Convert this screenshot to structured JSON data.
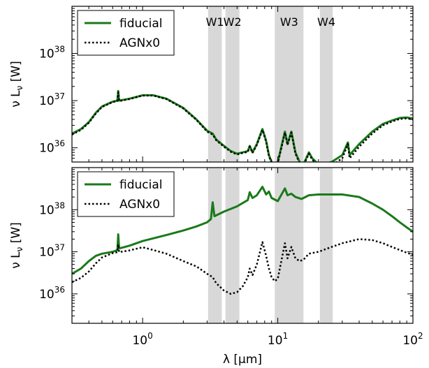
{
  "chart_data": [
    {
      "type": "line",
      "xscale": "log",
      "yscale": "log",
      "xlim": [
        0.3,
        100
      ],
      "ylim": [
        5e+35,
        1e+39
      ],
      "ylabel": "ν L_ν [W]",
      "yticks": [
        {
          "value": 1e+36,
          "mantissa": "10",
          "exp": "36"
        },
        {
          "value": 1e+37,
          "mantissa": "10",
          "exp": "37"
        },
        {
          "value": 1e+38,
          "mantissa": "10",
          "exp": "38"
        }
      ],
      "bands": [
        {
          "label": "W1",
          "range": [
            3.05,
            3.85
          ]
        },
        {
          "label": "W2",
          "range": [
            4.1,
            5.2
          ]
        },
        {
          "label": "W3",
          "range": [
            9.5,
            15.5
          ]
        },
        {
          "label": "W4",
          "range": [
            20.5,
            25.5
          ]
        }
      ],
      "legend_position": "top-left",
      "series": [
        {
          "name": "fiducial",
          "color": "#1a7a1a",
          "style": "solid",
          "points": [
            [
              0.3,
              2e+36
            ],
            [
              0.35,
              2.5e+36
            ],
            [
              0.4,
              3.5e+36
            ],
            [
              0.45,
              5.5e+36
            ],
            [
              0.5,
              7.5e+36
            ],
            [
              0.55,
              8.5e+36
            ],
            [
              0.6,
              9.5e+36
            ],
            [
              0.65,
              1e+37
            ],
            [
              0.66,
              1.6e+37
            ],
            [
              0.67,
              1e+37
            ],
            [
              0.8,
              1.1e+37
            ],
            [
              1.0,
              1.3e+37
            ],
            [
              1.2,
              1.3e+37
            ],
            [
              1.5,
              1.1e+37
            ],
            [
              2.0,
              7e+36
            ],
            [
              2.5,
              4e+36
            ],
            [
              3.0,
              2.3e+36
            ],
            [
              3.3,
              2e+36
            ],
            [
              3.5,
              1.5e+36
            ],
            [
              4.0,
              1.1e+36
            ],
            [
              4.5,
              8.5e+35
            ],
            [
              5.0,
              7.5e+35
            ],
            [
              5.5,
              8e+35
            ],
            [
              6.0,
              8.5e+35
            ],
            [
              6.2,
              1.1e+36
            ],
            [
              6.5,
              8e+35
            ],
            [
              7.0,
              1.2e+36
            ],
            [
              7.7,
              2.5e+36
            ],
            [
              8.2,
              1.4e+36
            ],
            [
              8.6,
              7e+35
            ],
            [
              9.0,
              5e+35
            ],
            [
              9.5,
              4e+35
            ],
            [
              10.0,
              5e+35
            ],
            [
              11.3,
              2.2e+36
            ],
            [
              11.8,
              1.2e+36
            ],
            [
              12.6,
              2.2e+36
            ],
            [
              13.5,
              8e+35
            ],
            [
              14.5,
              5e+35
            ],
            [
              15.5,
              4.5e+35
            ],
            [
              17.0,
              8e+35
            ],
            [
              18.0,
              6e+35
            ],
            [
              20.0,
              4.5e+35
            ],
            [
              22.0,
              4.5e+35
            ],
            [
              25.0,
              5e+35
            ],
            [
              30.0,
              7e+35
            ],
            [
              33.0,
              1.3e+36
            ],
            [
              34.0,
              7e+35
            ],
            [
              40.0,
              1.2e+36
            ],
            [
              50.0,
              2.2e+36
            ],
            [
              60.0,
              3.2e+36
            ],
            [
              70.0,
              3.8e+36
            ],
            [
              80.0,
              4.3e+36
            ],
            [
              90.0,
              4.4e+36
            ],
            [
              100.0,
              4.2e+36
            ]
          ]
        },
        {
          "name": "AGNx0",
          "color": "#000000",
          "style": "dotted",
          "points": [
            [
              0.3,
              1.9e+36
            ],
            [
              0.35,
              2.4e+36
            ],
            [
              0.4,
              3.4e+36
            ],
            [
              0.45,
              5.3e+36
            ],
            [
              0.5,
              7.3e+36
            ],
            [
              0.55,
              8.3e+36
            ],
            [
              0.6,
              9.3e+36
            ],
            [
              0.65,
              9.8e+36
            ],
            [
              0.66,
              1.5e+37
            ],
            [
              0.67,
              9.8e+36
            ],
            [
              0.8,
              1.08e+37
            ],
            [
              1.0,
              1.28e+37
            ],
            [
              1.2,
              1.28e+37
            ],
            [
              1.5,
              1.08e+37
            ],
            [
              2.0,
              6.8e+36
            ],
            [
              2.5,
              3.9e+36
            ],
            [
              3.0,
              2.2e+36
            ],
            [
              3.3,
              1.9e+36
            ],
            [
              3.5,
              1.45e+36
            ],
            [
              4.0,
              1.05e+36
            ],
            [
              4.5,
              8.2e+35
            ],
            [
              5.0,
              7.2e+35
            ],
            [
              5.5,
              7.8e+35
            ],
            [
              6.0,
              8.2e+35
            ],
            [
              6.2,
              1.05e+36
            ],
            [
              6.5,
              7.8e+35
            ],
            [
              7.0,
              1.15e+36
            ],
            [
              7.7,
              2.4e+36
            ],
            [
              8.2,
              1.35e+36
            ],
            [
              8.6,
              6.6e+35
            ],
            [
              9.0,
              4.8e+35
            ],
            [
              9.5,
              3.8e+35
            ],
            [
              10.0,
              4.7e+35
            ],
            [
              11.3,
              2.1e+36
            ],
            [
              11.8,
              1.15e+36
            ],
            [
              12.6,
              2.1e+36
            ],
            [
              13.5,
              7.5e+35
            ],
            [
              14.5,
              4.7e+35
            ],
            [
              15.5,
              4.2e+35
            ],
            [
              17.0,
              7.5e+35
            ],
            [
              18.0,
              5.6e+35
            ],
            [
              20.0,
              4.2e+35
            ],
            [
              22.0,
              3.8e+35
            ],
            [
              25.0,
              4.2e+35
            ],
            [
              30.0,
              6e+35
            ],
            [
              33.0,
              1.2e+36
            ],
            [
              34.0,
              6e+35
            ],
            [
              40.0,
              1.05e+36
            ],
            [
              50.0,
              2e+36
            ],
            [
              60.0,
              3e+36
            ],
            [
              70.0,
              3.6e+36
            ],
            [
              80.0,
              4.1e+36
            ],
            [
              90.0,
              4.2e+36
            ],
            [
              100.0,
              4e+36
            ]
          ]
        }
      ]
    },
    {
      "type": "line",
      "xscale": "log",
      "yscale": "log",
      "xlim": [
        0.3,
        100
      ],
      "ylim": [
        2e+35,
        1e+39
      ],
      "xlabel": "λ [μm]",
      "ylabel": "ν L_ν [W]",
      "xticks": [
        {
          "value": 1,
          "mantissa": "10",
          "exp": "0"
        },
        {
          "value": 10,
          "mantissa": "10",
          "exp": "1"
        },
        {
          "value": 100,
          "mantissa": "10",
          "exp": "2"
        }
      ],
      "yticks": [
        {
          "value": 1e+36,
          "mantissa": "10",
          "exp": "36"
        },
        {
          "value": 1e+37,
          "mantissa": "10",
          "exp": "37"
        },
        {
          "value": 1e+38,
          "mantissa": "10",
          "exp": "38"
        }
      ],
      "bands": [
        {
          "label": "",
          "range": [
            3.05,
            3.85
          ]
        },
        {
          "label": "",
          "range": [
            4.1,
            5.2
          ]
        },
        {
          "label": "",
          "range": [
            9.5,
            15.5
          ]
        },
        {
          "label": "",
          "range": [
            20.5,
            25.5
          ]
        }
      ],
      "legend_position": "top-left",
      "series": [
        {
          "name": "fiducial",
          "color": "#1a7a1a",
          "style": "solid",
          "points": [
            [
              0.3,
              3e+36
            ],
            [
              0.35,
              4e+36
            ],
            [
              0.4,
              6e+36
            ],
            [
              0.45,
              8e+36
            ],
            [
              0.5,
              9e+36
            ],
            [
              0.6,
              1e+37
            ],
            [
              0.65,
              1.1e+37
            ],
            [
              0.66,
              2.6e+37
            ],
            [
              0.67,
              1.2e+37
            ],
            [
              0.8,
              1.4e+37
            ],
            [
              1.0,
              1.8e+37
            ],
            [
              1.5,
              2.5e+37
            ],
            [
              2.0,
              3.2e+37
            ],
            [
              2.5,
              4e+37
            ],
            [
              3.0,
              5e+37
            ],
            [
              3.2,
              6e+37
            ],
            [
              3.3,
              1.5e+38
            ],
            [
              3.4,
              7e+37
            ],
            [
              4.0,
              9e+37
            ],
            [
              5.0,
              1.2e+38
            ],
            [
              6.0,
              1.7e+38
            ],
            [
              6.2,
              2.6e+38
            ],
            [
              6.5,
              1.9e+38
            ],
            [
              7.0,
              2.2e+38
            ],
            [
              7.7,
              3.5e+38
            ],
            [
              8.2,
              2.3e+38
            ],
            [
              8.6,
              2.7e+38
            ],
            [
              9.0,
              1.9e+38
            ],
            [
              10.0,
              1.6e+38
            ],
            [
              11.3,
              3.2e+38
            ],
            [
              11.8,
              2.2e+38
            ],
            [
              12.6,
              2.4e+38
            ],
            [
              13.5,
              2e+38
            ],
            [
              15.0,
              1.8e+38
            ],
            [
              17.0,
              2.2e+38
            ],
            [
              20.0,
              2.3e+38
            ],
            [
              30.0,
              2.3e+38
            ],
            [
              40.0,
              2e+38
            ],
            [
              50.0,
              1.4e+38
            ],
            [
              60.0,
              1e+38
            ],
            [
              70.0,
              7e+37
            ],
            [
              80.0,
              5e+37
            ],
            [
              90.0,
              3.8e+37
            ],
            [
              100.0,
              3e+37
            ]
          ]
        },
        {
          "name": "AGNx0",
          "color": "#000000",
          "style": "dotted",
          "points": [
            [
              0.3,
              1.9e+36
            ],
            [
              0.35,
              2.4e+36
            ],
            [
              0.4,
              3.4e+36
            ],
            [
              0.45,
              5.3e+36
            ],
            [
              0.5,
              7.3e+36
            ],
            [
              0.55,
              8.3e+36
            ],
            [
              0.6,
              9.3e+36
            ],
            [
              0.65,
              9.8e+36
            ],
            [
              0.66,
              1.5e+37
            ],
            [
              0.67,
              9.8e+36
            ],
            [
              0.8,
              1.08e+37
            ],
            [
              1.0,
              1.28e+37
            ],
            [
              1.2,
              1.1e+37
            ],
            [
              1.5,
              9e+36
            ],
            [
              2.0,
              6e+36
            ],
            [
              2.5,
              4.5e+36
            ],
            [
              3.0,
              3e+36
            ],
            [
              3.3,
              2.5e+36
            ],
            [
              3.5,
              1.8e+36
            ],
            [
              4.0,
              1.2e+36
            ],
            [
              4.5,
              1e+36
            ],
            [
              5.0,
              1.1e+36
            ],
            [
              5.5,
              1.5e+36
            ],
            [
              6.0,
              2.5e+36
            ],
            [
              6.2,
              4e+36
            ],
            [
              6.5,
              2.8e+36
            ],
            [
              7.0,
              5e+36
            ],
            [
              7.7,
              1.7e+37
            ],
            [
              8.2,
              8e+36
            ],
            [
              8.6,
              4e+36
            ],
            [
              9.0,
              2.5e+36
            ],
            [
              9.5,
              2e+36
            ],
            [
              10.0,
              2.3e+36
            ],
            [
              11.3,
              1.6e+37
            ],
            [
              11.8,
              7e+36
            ],
            [
              12.6,
              1.3e+37
            ],
            [
              13.5,
              7e+36
            ],
            [
              14.5,
              6e+36
            ],
            [
              15.5,
              6.5e+36
            ],
            [
              17.0,
              9e+36
            ],
            [
              20.0,
              1e+37
            ],
            [
              25.0,
              1.3e+37
            ],
            [
              30.0,
              1.6e+37
            ],
            [
              40.0,
              2e+37
            ],
            [
              50.0,
              1.9e+37
            ],
            [
              60.0,
              1.6e+37
            ],
            [
              70.0,
              1.3e+37
            ],
            [
              80.0,
              1.1e+37
            ],
            [
              90.0,
              9.5e+36
            ],
            [
              100.0,
              8.5e+36
            ]
          ]
        }
      ]
    }
  ]
}
